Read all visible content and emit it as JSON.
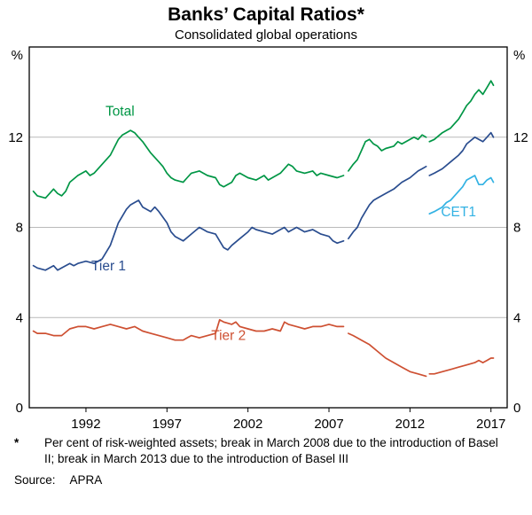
{
  "header": {
    "title": "Banks’ Capital Ratios*",
    "subtitle": "Consolidated global operations"
  },
  "footnote": {
    "marker": "*",
    "text": "Per cent of risk-weighted assets; break in March 2008 due to the introduction of Basel II; break in March 2013 due to the introduction of Basel III"
  },
  "source": {
    "label": "Source:",
    "value": "APRA"
  },
  "chart_data": {
    "type": "line",
    "title": "Banks’ Capital Ratios*",
    "subtitle": "Consolidated global operations",
    "unit_left": "%",
    "unit_right": "%",
    "ylim": [
      0,
      16
    ],
    "yticks": [
      0,
      4,
      8,
      12
    ],
    "xlim": [
      1988.5,
      2018
    ],
    "xticks": [
      1992,
      1997,
      2002,
      2007,
      2012,
      2017
    ],
    "grid": true,
    "legend_position": "inline-labels",
    "notes": "Series breaks at March 2008 (Basel II) and March 2013 (Basel III)",
    "style": {
      "frame_color": "#000000",
      "grid_color": "#b9b9b9"
    },
    "series": [
      {
        "id": "total",
        "name": "Total",
        "color": "#009645",
        "label": {
          "x": 1994.1,
          "y": 12.95
        },
        "segments": [
          [
            [
              1988.75,
              9.6
            ],
            [
              1989,
              9.4
            ],
            [
              1989.5,
              9.3
            ],
            [
              1990,
              9.7
            ],
            [
              1990.25,
              9.5
            ],
            [
              1990.5,
              9.4
            ],
            [
              1990.75,
              9.6
            ],
            [
              1991,
              10.0
            ],
            [
              1991.5,
              10.3
            ],
            [
              1992,
              10.5
            ],
            [
              1992.25,
              10.3
            ],
            [
              1992.5,
              10.4
            ],
            [
              1993,
              10.8
            ],
            [
              1993.5,
              11.2
            ],
            [
              1994,
              11.9
            ],
            [
              1994.25,
              12.1
            ],
            [
              1994.5,
              12.2
            ],
            [
              1994.75,
              12.3
            ],
            [
              1995,
              12.2
            ],
            [
              1995.25,
              12.0
            ],
            [
              1995.5,
              11.8
            ],
            [
              1996,
              11.3
            ],
            [
              1996.5,
              10.9
            ],
            [
              1996.75,
              10.7
            ],
            [
              1997,
              10.4
            ],
            [
              1997.25,
              10.2
            ],
            [
              1997.5,
              10.1
            ],
            [
              1998,
              10.0
            ],
            [
              1998.25,
              10.2
            ],
            [
              1998.5,
              10.4
            ],
            [
              1999,
              10.5
            ],
            [
              1999.5,
              10.3
            ],
            [
              2000,
              10.2
            ],
            [
              2000.25,
              9.9
            ],
            [
              2000.5,
              9.8
            ],
            [
              2001,
              10.0
            ],
            [
              2001.25,
              10.3
            ],
            [
              2001.5,
              10.4
            ],
            [
              2002,
              10.2
            ],
            [
              2002.5,
              10.1
            ],
            [
              2003,
              10.3
            ],
            [
              2003.25,
              10.1
            ],
            [
              2003.5,
              10.2
            ],
            [
              2004,
              10.4
            ],
            [
              2004.5,
              10.8
            ],
            [
              2004.75,
              10.7
            ],
            [
              2005,
              10.5
            ],
            [
              2005.5,
              10.4
            ],
            [
              2006,
              10.5
            ],
            [
              2006.25,
              10.3
            ],
            [
              2006.5,
              10.4
            ],
            [
              2007,
              10.3
            ],
            [
              2007.5,
              10.2
            ],
            [
              2007.9,
              10.3
            ]
          ],
          [
            [
              2008.2,
              10.5
            ],
            [
              2008.5,
              10.8
            ],
            [
              2008.75,
              11.0
            ],
            [
              2009,
              11.4
            ],
            [
              2009.25,
              11.8
            ],
            [
              2009.5,
              11.9
            ],
            [
              2009.75,
              11.7
            ],
            [
              2010,
              11.6
            ],
            [
              2010.25,
              11.4
            ],
            [
              2010.5,
              11.5
            ],
            [
              2011,
              11.6
            ],
            [
              2011.25,
              11.8
            ],
            [
              2011.5,
              11.7
            ],
            [
              2012,
              11.9
            ],
            [
              2012.25,
              12.0
            ],
            [
              2012.5,
              11.9
            ],
            [
              2012.75,
              12.1
            ],
            [
              2013,
              12.0
            ]
          ],
          [
            [
              2013.2,
              11.8
            ],
            [
              2013.5,
              11.9
            ],
            [
              2014,
              12.2
            ],
            [
              2014.25,
              12.3
            ],
            [
              2014.5,
              12.4
            ],
            [
              2015,
              12.8
            ],
            [
              2015.25,
              13.1
            ],
            [
              2015.5,
              13.4
            ],
            [
              2015.75,
              13.6
            ],
            [
              2016,
              13.9
            ],
            [
              2016.25,
              14.1
            ],
            [
              2016.5,
              13.9
            ],
            [
              2016.75,
              14.2
            ],
            [
              2017,
              14.5
            ],
            [
              2017.15,
              14.3
            ]
          ]
        ]
      },
      {
        "id": "tier1",
        "name": "Tier 1",
        "color": "#2A4D8F",
        "label": {
          "x": 1993.4,
          "y": 6.1
        },
        "segments": [
          [
            [
              1988.75,
              6.3
            ],
            [
              1989,
              6.2
            ],
            [
              1989.5,
              6.1
            ],
            [
              1990,
              6.3
            ],
            [
              1990.25,
              6.1
            ],
            [
              1990.5,
              6.2
            ],
            [
              1991,
              6.4
            ],
            [
              1991.25,
              6.3
            ],
            [
              1991.5,
              6.4
            ],
            [
              1992,
              6.5
            ],
            [
              1992.5,
              6.4
            ],
            [
              1993,
              6.6
            ],
            [
              1993.5,
              7.2
            ],
            [
              1994,
              8.2
            ],
            [
              1994.5,
              8.8
            ],
            [
              1994.75,
              9.0
            ],
            [
              1995,
              9.1
            ],
            [
              1995.25,
              9.2
            ],
            [
              1995.5,
              8.9
            ],
            [
              1996,
              8.7
            ],
            [
              1996.25,
              8.9
            ],
            [
              1996.5,
              8.7
            ],
            [
              1997,
              8.2
            ],
            [
              1997.25,
              7.8
            ],
            [
              1997.5,
              7.6
            ],
            [
              1998,
              7.4
            ],
            [
              1998.5,
              7.7
            ],
            [
              1999,
              8.0
            ],
            [
              1999.25,
              7.9
            ],
            [
              1999.5,
              7.8
            ],
            [
              2000,
              7.7
            ],
            [
              2000.25,
              7.4
            ],
            [
              2000.5,
              7.1
            ],
            [
              2000.75,
              7.0
            ],
            [
              2001,
              7.2
            ],
            [
              2001.5,
              7.5
            ],
            [
              2002,
              7.8
            ],
            [
              2002.25,
              8.0
            ],
            [
              2002.5,
              7.9
            ],
            [
              2003,
              7.8
            ],
            [
              2003.5,
              7.7
            ],
            [
              2004,
              7.9
            ],
            [
              2004.25,
              8.0
            ],
            [
              2004.5,
              7.8
            ],
            [
              2005,
              8.0
            ],
            [
              2005.25,
              7.9
            ],
            [
              2005.5,
              7.8
            ],
            [
              2006,
              7.9
            ],
            [
              2006.5,
              7.7
            ],
            [
              2007,
              7.6
            ],
            [
              2007.25,
              7.4
            ],
            [
              2007.5,
              7.3
            ],
            [
              2007.9,
              7.4
            ]
          ],
          [
            [
              2008.2,
              7.5
            ],
            [
              2008.5,
              7.8
            ],
            [
              2008.75,
              8.0
            ],
            [
              2009,
              8.4
            ],
            [
              2009.25,
              8.7
            ],
            [
              2009.5,
              9.0
            ],
            [
              2009.75,
              9.2
            ],
            [
              2010,
              9.3
            ],
            [
              2010.5,
              9.5
            ],
            [
              2011,
              9.7
            ],
            [
              2011.5,
              10.0
            ],
            [
              2012,
              10.2
            ],
            [
              2012.5,
              10.5
            ],
            [
              2012.75,
              10.6
            ],
            [
              2013,
              10.7
            ]
          ],
          [
            [
              2013.2,
              10.3
            ],
            [
              2013.5,
              10.4
            ],
            [
              2014,
              10.6
            ],
            [
              2014.5,
              10.9
            ],
            [
              2015,
              11.2
            ],
            [
              2015.25,
              11.4
            ],
            [
              2015.5,
              11.7
            ],
            [
              2016,
              12.0
            ],
            [
              2016.25,
              11.9
            ],
            [
              2016.5,
              11.8
            ],
            [
              2016.75,
              12.0
            ],
            [
              2017,
              12.2
            ],
            [
              2017.15,
              12.0
            ]
          ]
        ]
      },
      {
        "id": "cet1",
        "name": "CET1",
        "color": "#33B2E3",
        "label": {
          "x": 2015.0,
          "y": 8.5
        },
        "segments": [
          [
            [
              2013.2,
              8.6
            ],
            [
              2013.5,
              8.7
            ],
            [
              2014,
              8.9
            ],
            [
              2014.25,
              9.1
            ],
            [
              2014.5,
              9.2
            ],
            [
              2015,
              9.6
            ],
            [
              2015.25,
              9.8
            ],
            [
              2015.5,
              10.1
            ],
            [
              2016,
              10.3
            ],
            [
              2016.25,
              9.9
            ],
            [
              2016.5,
              9.9
            ],
            [
              2016.75,
              10.1
            ],
            [
              2017,
              10.2
            ],
            [
              2017.15,
              10.0
            ]
          ]
        ]
      },
      {
        "id": "tier2",
        "name": "Tier 2",
        "color": "#CE5032",
        "label": {
          "x": 2000.8,
          "y": 3.0
        },
        "segments": [
          [
            [
              1988.75,
              3.4
            ],
            [
              1989,
              3.3
            ],
            [
              1989.5,
              3.3
            ],
            [
              1990,
              3.2
            ],
            [
              1990.5,
              3.2
            ],
            [
              1991,
              3.5
            ],
            [
              1991.5,
              3.6
            ],
            [
              1992,
              3.6
            ],
            [
              1992.5,
              3.5
            ],
            [
              1993,
              3.6
            ],
            [
              1993.5,
              3.7
            ],
            [
              1994,
              3.6
            ],
            [
              1994.5,
              3.5
            ],
            [
              1995,
              3.6
            ],
            [
              1995.5,
              3.4
            ],
            [
              1996,
              3.3
            ],
            [
              1996.5,
              3.2
            ],
            [
              1997,
              3.1
            ],
            [
              1997.5,
              3.0
            ],
            [
              1998,
              3.0
            ],
            [
              1998.25,
              3.1
            ],
            [
              1998.5,
              3.2
            ],
            [
              1999,
              3.1
            ],
            [
              1999.5,
              3.2
            ],
            [
              2000,
              3.3
            ],
            [
              2000.25,
              3.9
            ],
            [
              2000.5,
              3.8
            ],
            [
              2001,
              3.7
            ],
            [
              2001.25,
              3.8
            ],
            [
              2001.5,
              3.6
            ],
            [
              2002,
              3.5
            ],
            [
              2002.5,
              3.4
            ],
            [
              2003,
              3.4
            ],
            [
              2003.5,
              3.5
            ],
            [
              2004,
              3.4
            ],
            [
              2004.25,
              3.8
            ],
            [
              2004.5,
              3.7
            ],
            [
              2005,
              3.6
            ],
            [
              2005.5,
              3.5
            ],
            [
              2006,
              3.6
            ],
            [
              2006.5,
              3.6
            ],
            [
              2007,
              3.7
            ],
            [
              2007.5,
              3.6
            ],
            [
              2007.9,
              3.6
            ]
          ],
          [
            [
              2008.2,
              3.3
            ],
            [
              2008.5,
              3.2
            ],
            [
              2009,
              3.0
            ],
            [
              2009.5,
              2.8
            ],
            [
              2010,
              2.5
            ],
            [
              2010.5,
              2.2
            ],
            [
              2011,
              2.0
            ],
            [
              2011.5,
              1.8
            ],
            [
              2012,
              1.6
            ],
            [
              2012.5,
              1.5
            ],
            [
              2013,
              1.4
            ]
          ],
          [
            [
              2013.2,
              1.5
            ],
            [
              2013.5,
              1.5
            ],
            [
              2014,
              1.6
            ],
            [
              2014.5,
              1.7
            ],
            [
              2015,
              1.8
            ],
            [
              2015.5,
              1.9
            ],
            [
              2016,
              2.0
            ],
            [
              2016.25,
              2.1
            ],
            [
              2016.5,
              2.0
            ],
            [
              2016.75,
              2.1
            ],
            [
              2017,
              2.2
            ],
            [
              2017.15,
              2.2
            ]
          ]
        ]
      }
    ]
  }
}
